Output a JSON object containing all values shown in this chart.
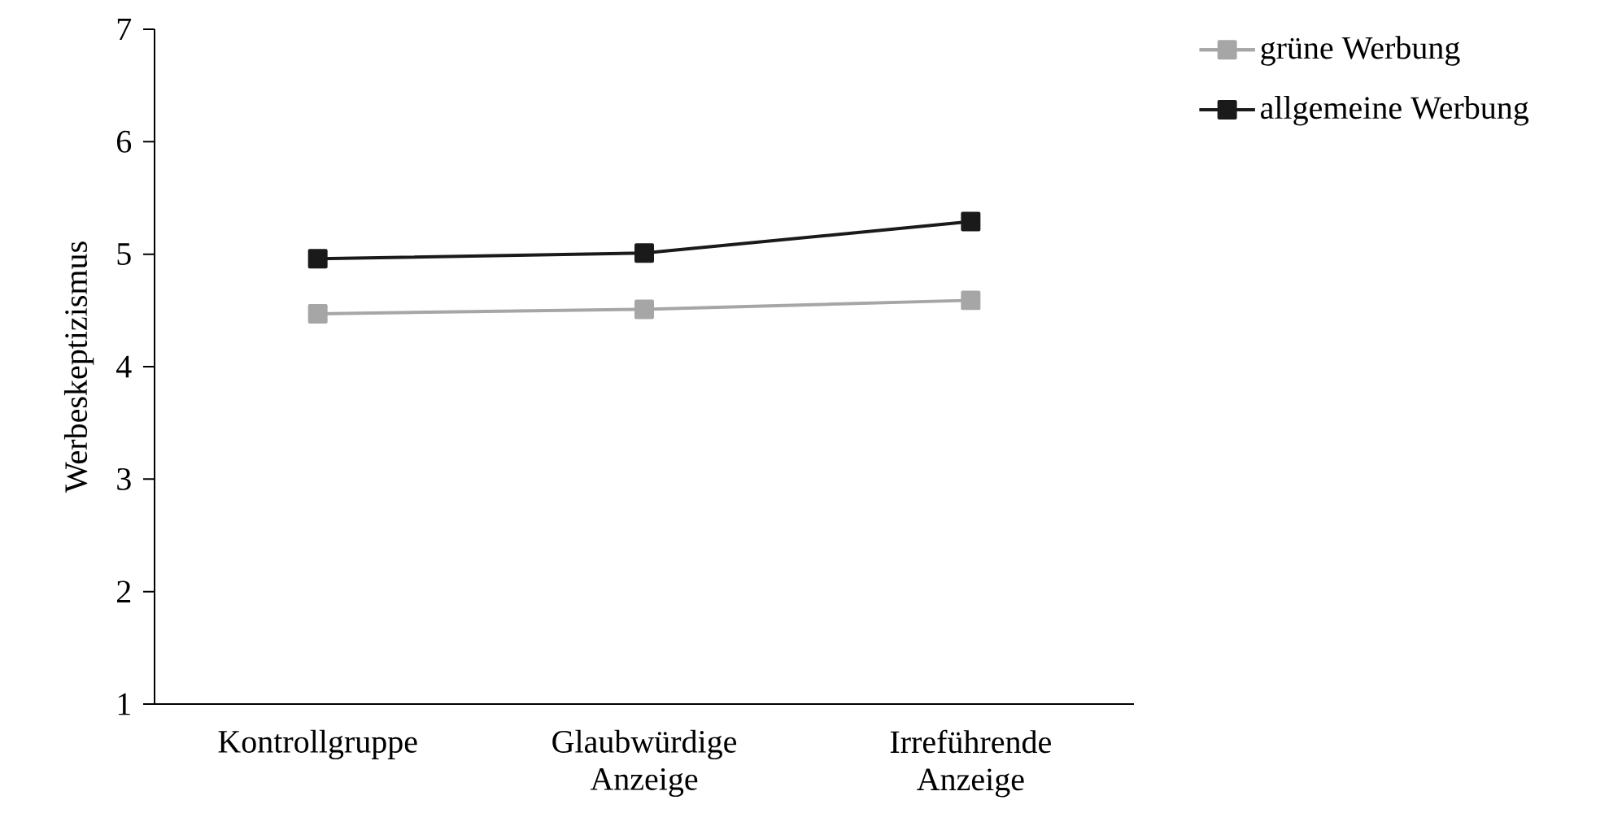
{
  "chart_data": {
    "type": "line",
    "ylabel": "Werbeskeptizismus",
    "categories": [
      "Kontrollgruppe",
      "Glaubwürdige Anzeige",
      "Irreführende Anzeige"
    ],
    "series": [
      {
        "name": "grüne Werbung",
        "color": "#a6a6a6",
        "values": [
          4.47,
          4.51,
          4.59
        ]
      },
      {
        "name": "allgemeine Werbung",
        "color": "#1a1a1a",
        "values": [
          4.96,
          5.01,
          5.29
        ]
      }
    ],
    "ylim": [
      1,
      7
    ],
    "yticks": [
      1,
      2,
      3,
      4,
      5,
      6,
      7
    ],
    "marker": "square",
    "line_style": "solid",
    "legend": "top right",
    "grid": false
  }
}
